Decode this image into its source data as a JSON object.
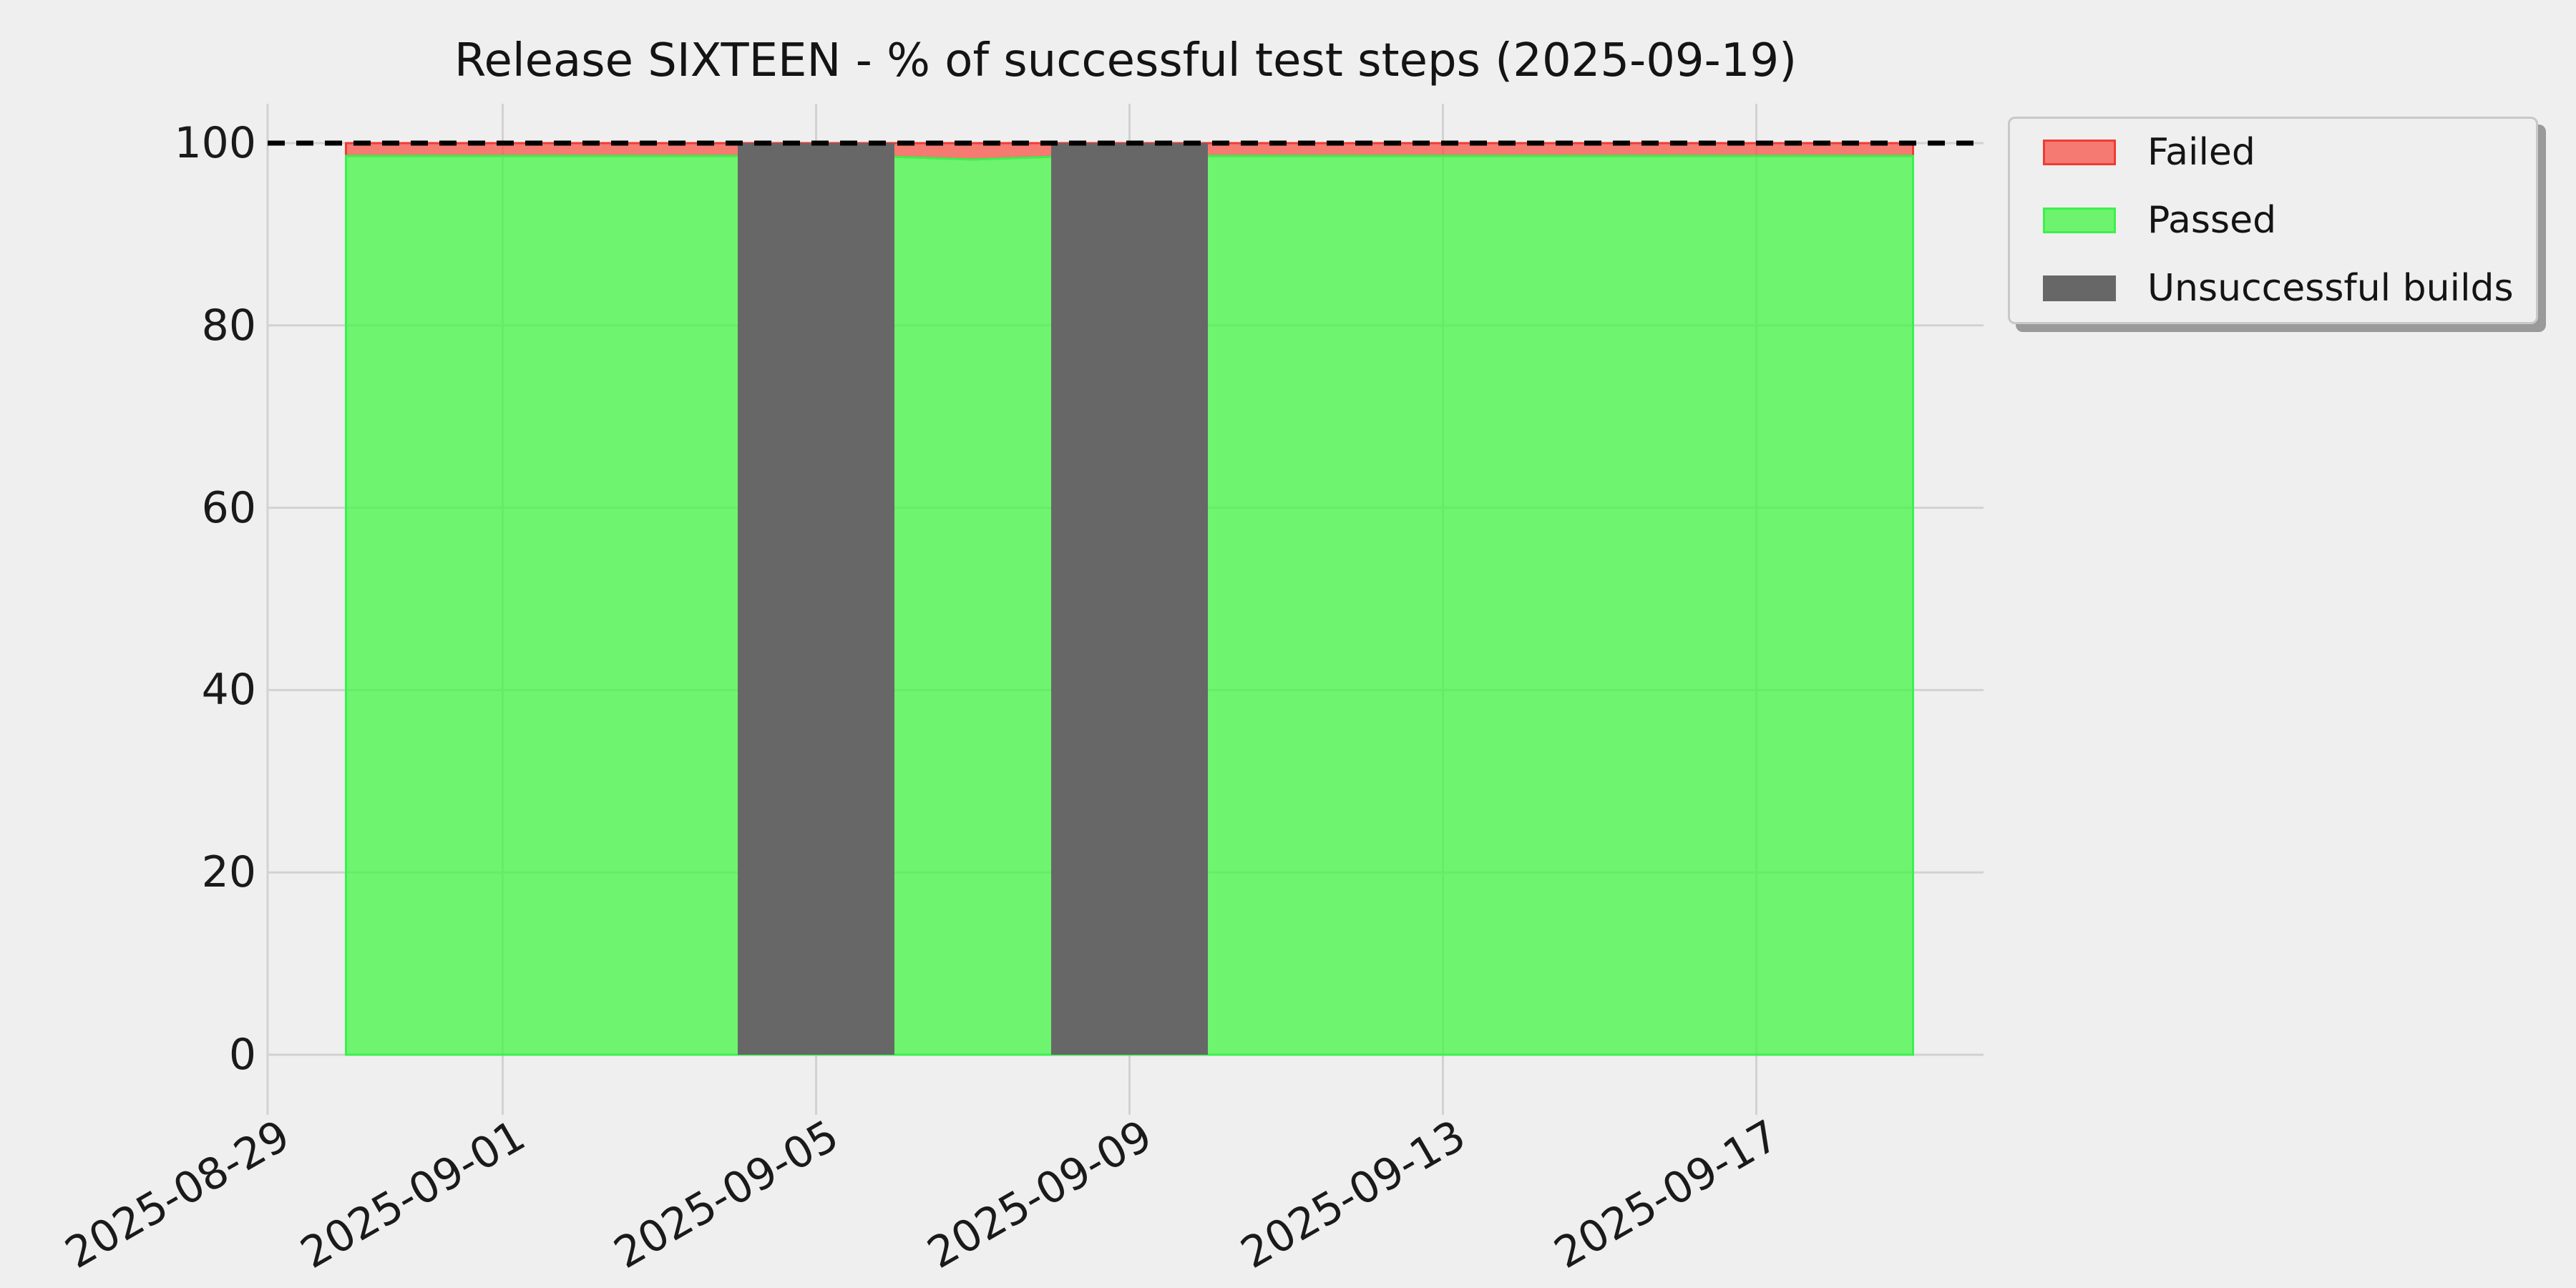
{
  "title": "Release SIXTEEN - % of successful test steps (2025-09-19)",
  "colors": {
    "background": "#efefef",
    "grid": "#d2d2d2",
    "text": "#1a1a1a",
    "passed_fill": "#3cf53c",
    "passed_edge": "#3cf050",
    "failed_fill": "#f8483c",
    "failed_edge": "#ee3c34",
    "builds_fill": "#676767",
    "target_line": "#000000",
    "legend_face": "#efefef",
    "legend_edge": "#c8c8c8"
  },
  "chart_data": {
    "type": "area",
    "stacked": true,
    "title": "Release SIXTEEN - % of successful test steps (2025-09-19)",
    "xlabel": "",
    "ylabel": "",
    "unit": "%",
    "ylim": [
      0,
      100
    ],
    "yticks": [
      0,
      20,
      40,
      60,
      80,
      100
    ],
    "xticks": [
      "2025-08-29",
      "2025-09-01",
      "2025-09-05",
      "2025-09-09",
      "2025-09-13",
      "2025-09-17"
    ],
    "grid": true,
    "x": [
      "2025-08-30",
      "2025-08-31",
      "2025-09-01",
      "2025-09-02",
      "2025-09-03",
      "2025-09-04",
      "2025-09-05",
      "2025-09-06",
      "2025-09-07",
      "2025-09-08",
      "2025-09-09",
      "2025-09-10",
      "2025-09-11",
      "2025-09-12",
      "2025-09-13",
      "2025-09-14",
      "2025-09-15",
      "2025-09-16",
      "2025-09-17",
      "2025-09-18",
      "2025-09-19"
    ],
    "series": [
      {
        "name": "Passed",
        "values": [
          98.6,
          98.6,
          98.6,
          98.6,
          98.6,
          98.6,
          98.5,
          98.5,
          98.2,
          98.5,
          98.6,
          98.6,
          98.6,
          98.6,
          98.6,
          98.6,
          98.6,
          98.6,
          98.6,
          98.6,
          98.6
        ]
      },
      {
        "name": "Failed",
        "values": [
          1.4,
          1.4,
          1.4,
          1.4,
          1.4,
          1.4,
          1.5,
          1.5,
          1.8,
          1.5,
          1.4,
          1.4,
          1.4,
          1.4,
          1.4,
          1.4,
          1.4,
          1.4,
          1.4,
          1.4,
          1.4
        ]
      }
    ],
    "unsuccessful_builds": [
      {
        "from": "2025-09-04",
        "to": "2025-09-06"
      },
      {
        "from": "2025-09-08",
        "to": "2025-09-10"
      }
    ],
    "target_line": {
      "value": 100,
      "style": "dashed"
    },
    "legend_position": "upper right",
    "legend": [
      {
        "label": "Failed",
        "series": "Failed"
      },
      {
        "label": "Passed",
        "series": "Passed"
      },
      {
        "label": "Unsuccessful builds",
        "series": "Unsuccessful builds"
      }
    ]
  }
}
